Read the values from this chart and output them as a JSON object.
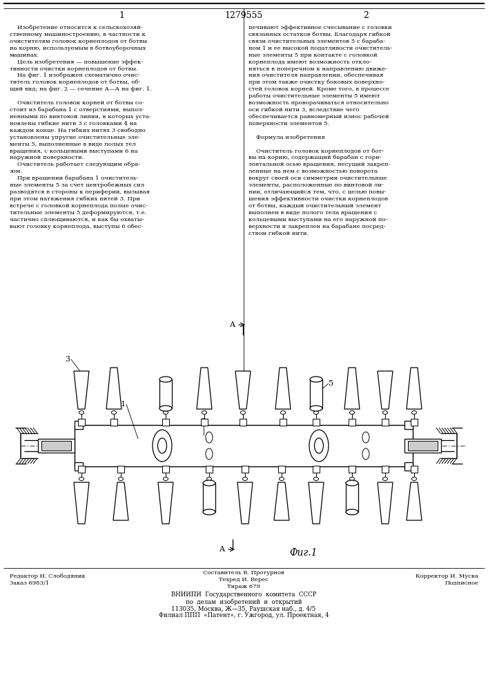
{
  "patent_number": "1279555",
  "col1_label": "1",
  "col2_label": "2",
  "background": "#ffffff",
  "text_color": "#000000",
  "col1_text": "    Изобретение относится к сельскохозяй-\nственному машиностроению, в частности к\nочистителям головок корнеплодов от ботвы\nна корню, используемым в ботвоуборочных\nмашинах.\n    Цель изобретения — повышение эффек-\nтивности очистки корнеплодов от ботвы.\n    На фиг. 1 изображен схематично очис-\nтитель головок корнеплодов от ботвы, об-\nщий вид; на фиг. 2 — сечение А—А на фиг. 1.\n\n    Очиститель головок корней от ботвы со-\nстоит из барабана 1 с отверстиями, выпол-\nненными по винтовой линии, в которых уста-\nновлены гибкие нити 3 с головками 4 на\nкаждом конце. На гибких нитях 3 свободно\nустановлены упругие очистительные эле-\nменты 5, выполненные в виде полых тел\nвращения, с кольцевыми выступами 6 на\nнаружной поверхности.\n    Очиститель работает следующим обра-\nзом.\n    При вращении барабана 1 очиститель-\nные элементы 5 за счет центробежных сил\nразводятся в стороны к периферии, вызывая\nпри этом натяжения гибких нитей 3. При\nвстрече с головкой корнеплода полые очис-\nтительные элементы 5 деформируются, т.е.\nчастично сплющиваются, и как бы охваты-\nвают головку корнеплода, выступы 6 обес-",
  "col2_text": "печивают эффективное счесывание с головки\nсвязанных остатков ботвы. Благодаря гибкой\nсвязи очистительных элементов 5 с бараба-\nном 1 и ее высокой податливости очиститель-\nные элементы 5 при контакте с головкой\nкорнеплода имеют возможность откло-\nняться в поперечном к направлению движе-\nния очистителя направлении, обеспечивая\nпри этом также очистку боковых поверхно-\nстей головок корней. Кроме того, в процессе\nработы очистительные элементы 5 имеют\nвозможность проворачиваться относительно\nоси гибкой нити 3, вследствие чего\nобеспечивается равномерный износ рабочей\nповерхности элементов 5.\n\n    Формула изобретения\n\n    Очиститель головок корнеплодов от бот-\nвы на корню, содержащий барабан с гори-\nзонтальной осью вращения, несущий закреп-\nленные на нем с возможностью поворота\nвокруг своей оси симметрии очистительные\nэлементы, расположенные по винтовой ли-\nнии, отличающийся тем, что, с целью повы-\nшения эффективности очистки корнеплодов\nот ботвы, каждый очистительный элемент\nвыполнен в виде полого тела вращения с\nкольцевыми выступами на его наружной по-\nверхности и закреплен на барабане посред-\nством гибкой нити.",
  "footer_sestavitel": "Составитель В. Протурнов",
  "footer_redaktor": "Редактор Н. Слободяник",
  "footer_tehred": "Техред И. Верес",
  "footer_korrektor": "Корректор И. Муска",
  "footer_zakaz": "Заказ 6983/1",
  "footer_tirazh": "Тираж 679",
  "footer_podpisnoe": "Подписное",
  "footer_vniiipi": "ВНИИПИ  Государственного  комитета  СССР",
  "footer_po_delam": "по  делам  изобретений  и  открытий",
  "footer_address": "113035, Москва, Ж—35, Раушская наб., д. 4/5",
  "footer_filial": "Филиал ППП  «Патент», г. Ужгород, ул. Проектная, 4",
  "fig_label": "Фиг.1"
}
